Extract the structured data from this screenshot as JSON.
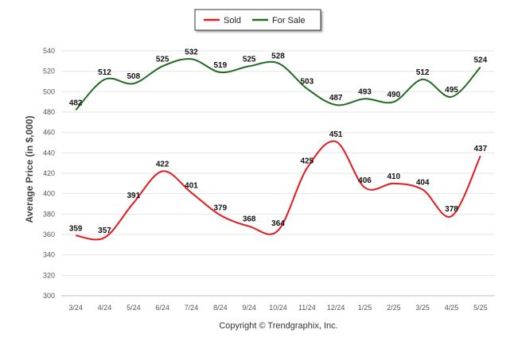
{
  "chart_data": {
    "type": "line",
    "categories": [
      "3/24",
      "4/24",
      "5/24",
      "6/24",
      "7/24",
      "8/24",
      "9/24",
      "10/24",
      "11/24",
      "12/24",
      "1/25",
      "2/25",
      "3/25",
      "4/25",
      "5/25"
    ],
    "series": [
      {
        "name": "Sold",
        "color": "#e31a1c",
        "values": [
          359,
          357,
          391,
          422,
          401,
          379,
          368,
          364,
          425,
          451,
          406,
          410,
          404,
          378,
          437
        ]
      },
      {
        "name": "For Sale",
        "color": "#1f6b1f",
        "values": [
          482,
          512,
          508,
          525,
          532,
          519,
          525,
          528,
          503,
          487,
          493,
          490,
          512,
          495,
          524
        ]
      }
    ],
    "ylabel": "Average Price (in $,000)",
    "ylim": [
      300,
      540
    ],
    "yticks": [
      300,
      320,
      340,
      360,
      380,
      400,
      420,
      440,
      460,
      480,
      500,
      520,
      540
    ],
    "grid": true,
    "legend": "top-center"
  },
  "footer": "Copyright © Trendgraphix, Inc."
}
